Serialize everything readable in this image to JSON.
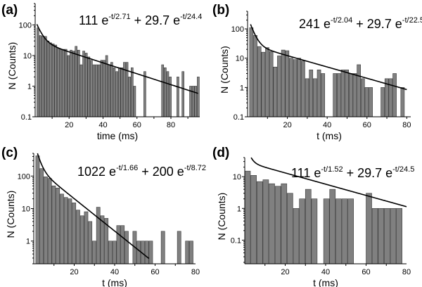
{
  "chart_data": [
    {
      "type": "bar",
      "panel": "(a)",
      "title": "",
      "formula": {
        "a1": "111",
        "tau1": "2.71",
        "a2": "29.7",
        "tau2": "24.4"
      },
      "xlabel": "time (ms)",
      "ylabel": "N (Counts)",
      "yscale": "log",
      "xlim": [
        0,
        97
      ],
      "ylim": [
        0.1,
        500
      ],
      "xticks": [
        20,
        40,
        60,
        80
      ],
      "xtick_labels": [
        "20",
        "40",
        "60",
        "80"
      ],
      "yticks": [
        0.1,
        1,
        10,
        100
      ],
      "ytick_labels": [
        "0.1",
        "1",
        "10",
        "100"
      ],
      "bin_width": 1.5,
      "x_start": 1.0,
      "values": [
        80,
        45,
        43,
        42,
        30,
        26,
        24,
        22,
        17,
        16,
        16,
        16,
        10,
        15,
        14,
        20,
        15,
        5,
        14,
        12,
        9,
        7,
        5,
        5,
        5,
        7,
        7,
        10,
        5,
        6,
        4,
        3,
        4,
        4,
        6,
        6,
        2,
        4,
        1,
        0,
        0,
        0,
        3,
        0,
        0,
        0,
        0,
        0,
        0,
        5,
        4,
        3,
        2,
        0,
        0,
        2,
        0,
        3,
        0,
        0,
        1,
        1,
        1,
        2,
        0,
        1,
        0,
        0,
        0,
        2,
        0,
        0,
        1
      ],
      "fit": {
        "A1": 111,
        "t1": 2.71,
        "A2": 29.7,
        "t2": 24.4,
        "t_range": [
          1,
          96
        ]
      }
    },
    {
      "type": "bar",
      "panel": "(b)",
      "formula": {
        "a1": "241",
        "tau1": "2.04",
        "a2": "29.7",
        "tau2": "22.5"
      },
      "xlabel": "t (ms)",
      "ylabel": "N (Counts)",
      "yscale": "log",
      "xlim": [
        0,
        82
      ],
      "ylim": [
        0.1,
        400
      ],
      "xticks": [
        20,
        40,
        60,
        80
      ],
      "xtick_labels": [
        "20",
        "40",
        "60",
        "80"
      ],
      "yticks": [
        0.1,
        1,
        10,
        100
      ],
      "ytick_labels": [
        "0.1",
        "1",
        "10",
        "100"
      ],
      "bin_width": 2.0,
      "x_start": 1.0,
      "values": [
        110,
        60,
        25,
        16,
        23,
        17,
        5,
        12,
        19,
        18,
        10,
        9,
        10,
        8,
        2,
        4,
        2,
        4,
        3,
        0,
        0,
        3,
        3,
        4,
        4,
        3,
        3,
        6,
        2,
        1,
        1,
        0,
        0,
        1,
        2,
        2,
        3,
        0,
        1
      ],
      "fit": {
        "A1": 241,
        "t1": 2.04,
        "A2": 29.7,
        "t2": 22.5,
        "t_range": [
          1.5,
          80
        ]
      }
    },
    {
      "type": "bar",
      "panel": "(c)",
      "formula": {
        "a1": "1022",
        "tau1": "1.66",
        "a2": "200",
        "tau2": "8.72"
      },
      "xlabel": "t (ms)",
      "ylabel": "N (Counts)",
      "yscale": "log",
      "xlim": [
        0,
        80
      ],
      "ylim": [
        0.2,
        500
      ],
      "xticks": [
        20,
        40,
        60,
        80
      ],
      "xtick_labels": [
        "20",
        "40",
        "60",
        "80"
      ],
      "yticks": [
        1,
        10,
        100
      ],
      "ytick_labels": [
        "1",
        "10",
        "100"
      ],
      "bin_width": 2.0,
      "x_start": 1.0,
      "values": [
        420,
        170,
        95,
        85,
        50,
        43,
        28,
        22,
        20,
        15,
        9,
        6,
        8,
        4,
        1,
        11,
        6,
        5,
        1,
        1,
        3,
        3,
        2,
        0,
        2,
        1,
        1,
        1,
        1,
        0,
        0,
        2,
        0,
        0,
        0,
        2,
        0,
        1,
        1
      ],
      "fit": {
        "A1": 1022,
        "t1": 1.66,
        "A2": 200,
        "t2": 8.72,
        "t_range": [
          1,
          57
        ]
      }
    },
    {
      "type": "bar",
      "panel": "(d)",
      "formula": {
        "a1": "111",
        "tau1": "1.52",
        "a2": "29.7",
        "tau2": "24.5"
      },
      "xlabel": "t (ms)",
      "ylabel": "N (Counts)",
      "yscale": "log",
      "xlim": [
        0,
        80
      ],
      "ylim": [
        0.018,
        40
      ],
      "xticks": [
        20,
        40,
        60,
        80
      ],
      "xtick_labels": [
        "20",
        "40",
        "60",
        "80"
      ],
      "yticks": [
        0.1,
        1,
        10
      ],
      "ytick_labels": [
        "0.1",
        "1",
        "10"
      ],
      "bin_width": 3.0,
      "x_start": 0.0,
      "values": [
        15,
        11,
        7,
        8,
        6,
        5,
        6,
        3,
        1,
        2,
        4,
        2,
        0,
        2,
        4,
        2,
        2,
        2,
        0,
        0,
        3,
        1,
        1,
        1,
        1,
        1
      ],
      "fit": {
        "A1": 111,
        "t1": 1.52,
        "A2": 29.7,
        "t2": 24.5,
        "t_range": [
          2,
          80
        ]
      }
    }
  ]
}
